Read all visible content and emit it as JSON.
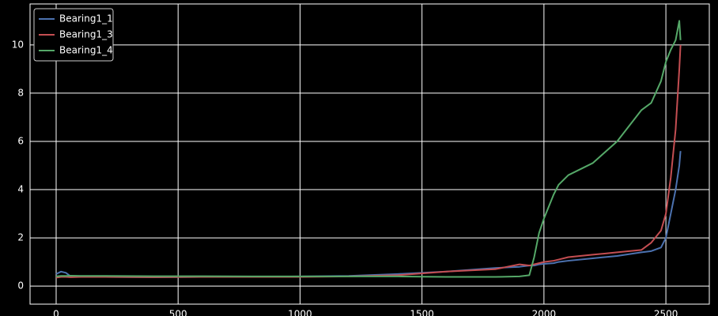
{
  "chart_data": {
    "type": "line",
    "x": [
      0,
      20,
      40,
      60,
      100,
      200,
      400,
      600,
      800,
      1000,
      1200,
      1400,
      1600,
      1800,
      1900,
      1940,
      1960,
      1980,
      2000,
      2040,
      2060,
      2100,
      2200,
      2300,
      2400,
      2440,
      2480,
      2500,
      2520,
      2540,
      2555,
      2560
    ],
    "series": [
      {
        "name": "Bearing1_1",
        "color": "#4c72b0",
        "values": [
          0.5,
          0.6,
          0.55,
          0.4,
          0.4,
          0.38,
          0.37,
          0.38,
          0.38,
          0.4,
          0.42,
          0.5,
          0.6,
          0.75,
          0.8,
          0.85,
          0.85,
          0.9,
          0.92,
          0.95,
          1.0,
          1.05,
          1.15,
          1.25,
          1.4,
          1.45,
          1.6,
          2.0,
          3.0,
          4.0,
          5.0,
          5.6
        ]
      },
      {
        "name": "Bearing1_3",
        "color": "#c44e52",
        "values": [
          0.35,
          0.38,
          0.38,
          0.37,
          0.38,
          0.38,
          0.37,
          0.38,
          0.38,
          0.38,
          0.4,
          0.45,
          0.6,
          0.7,
          0.9,
          0.85,
          0.9,
          0.95,
          1.0,
          1.05,
          1.1,
          1.2,
          1.3,
          1.4,
          1.5,
          1.8,
          2.3,
          3.0,
          4.5,
          6.5,
          9.0,
          10.0
        ]
      },
      {
        "name": "Bearing1_4",
        "color": "#55a868",
        "values": [
          0.4,
          0.42,
          0.42,
          0.43,
          0.42,
          0.42,
          0.41,
          0.41,
          0.4,
          0.4,
          0.4,
          0.4,
          0.38,
          0.38,
          0.4,
          0.45,
          1.2,
          2.2,
          2.8,
          3.8,
          4.2,
          4.6,
          5.1,
          6.0,
          7.3,
          7.6,
          8.5,
          9.3,
          9.8,
          10.2,
          11.0,
          10.2
        ]
      }
    ],
    "xlim": [
      -107,
      2678
    ],
    "ylim": [
      -0.75,
      11.7
    ],
    "xticks": [
      0,
      500,
      1000,
      1500,
      2000,
      2500
    ],
    "yticks": [
      0,
      2,
      4,
      6,
      8,
      10
    ],
    "grid": true,
    "legend": "upper-left"
  }
}
